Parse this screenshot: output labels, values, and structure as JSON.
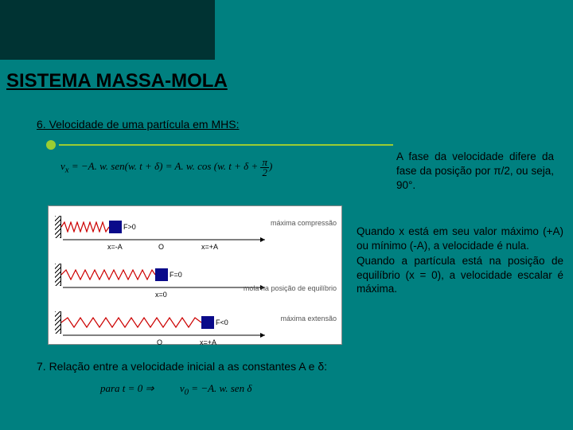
{
  "title": "SISTEMA MASSA-MOLA",
  "section6": "6. Velocidade de uma partícula em MHS:",
  "formula1": "v<sub>x</sub> = −A. w. sen(w. t + δ) = A. w. cos (w. t + δ + π/2)",
  "phaseText": "A fase da velocidade difere da fase da posição por π/2, ou seja, 90°.",
  "diagram": {
    "rows": [
      {
        "force": "F>0",
        "springLen": 60,
        "massX": 74,
        "side": "máxima compressão",
        "xPos": "x=-A"
      },
      {
        "force": "F=0",
        "springLen": 118,
        "massX": 132,
        "side": "mola na posição de equilíbrio",
        "xPos": "x=0"
      },
      {
        "force": "F<0",
        "springLen": 176,
        "massX": 190,
        "side": "máxima extensão",
        "xPos": "x=+A"
      }
    ],
    "axisLabels": {
      "left": "x=-A",
      "mid": "O",
      "right": "x=+A"
    },
    "colors": {
      "mass": "#0a0a8a",
      "spring": "#cc0000",
      "axis": "#000000",
      "bg": "#ffffff"
    }
  },
  "descText": "Quando x está em seu valor máximo (+A) ou mínimo (-A), a velocidade é nula.\nQuando a partícula está na posição de equilíbrio (x = 0), a velocidade escalar é máxima.",
  "section7": "7. Relação entre a velocidade inicial a as constantes A e δ:",
  "formula2a": "para t = 0 ⇒",
  "formula2b": "v<sub>0</sub> = −A. w. sen δ"
}
